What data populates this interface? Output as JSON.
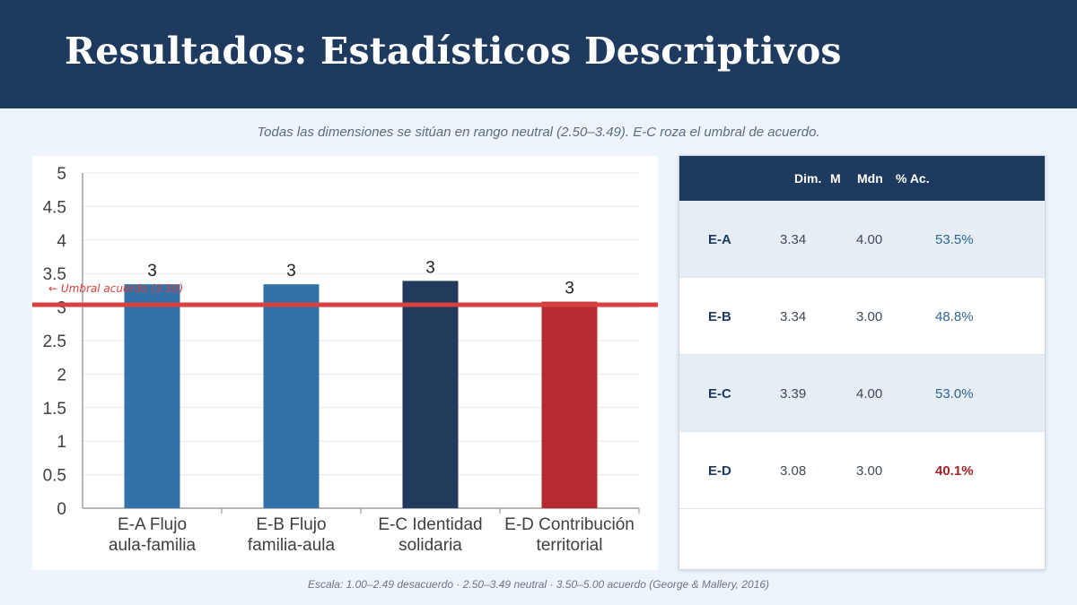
{
  "header": {
    "title": "Resultados: Estadísticos Descriptivos"
  },
  "subtitle": "Todas las dimensiones se sitúan en rango neutral (2.50–3.49). E-C roza el umbral de acuerdo.",
  "chart_data": {
    "type": "bar",
    "categories": [
      [
        "E-A Flujo",
        "aula-familia"
      ],
      [
        "E-B Flujo",
        "familia-aula"
      ],
      [
        "E-C Identidad",
        "solidaria"
      ],
      [
        "E-D Contribución",
        "territorial"
      ]
    ],
    "values": [
      3.34,
      3.34,
      3.39,
      3.08
    ],
    "data_labels": [
      "3",
      "3",
      "3",
      "3"
    ],
    "bar_colors": [
      "#3272a8",
      "#3272a8",
      "#223a5c",
      "#b52b2f"
    ],
    "ylim": [
      0,
      5
    ],
    "yticks": [
      "0",
      "0.5",
      "1",
      "1.5",
      "2",
      "2.5",
      "3",
      "3.5",
      "4",
      "4.5",
      "5"
    ],
    "grid": true,
    "threshold": {
      "label": "← Umbral acuerdo (3.50)",
      "color": "#d94040"
    }
  },
  "table": {
    "headers": [
      "Dim.",
      "M",
      "Mdn",
      "% Ac."
    ],
    "rows": [
      {
        "dim": "E-A",
        "m": "3.34",
        "mdn": "4.00",
        "ac": "53.5%",
        "ac_color": "#2f6690",
        "ac_bold": false
      },
      {
        "dim": "E-B",
        "m": "3.34",
        "mdn": "3.00",
        "ac": "48.8%",
        "ac_color": "#2f6690",
        "ac_bold": false
      },
      {
        "dim": "E-C",
        "m": "3.39",
        "mdn": "4.00",
        "ac": "53.0%",
        "ac_color": "#2f6690",
        "ac_bold": false
      },
      {
        "dim": "E-D",
        "m": "3.08",
        "mdn": "3.00",
        "ac": "40.1%",
        "ac_color": "#a3232a",
        "ac_bold": true
      }
    ]
  },
  "footnote": "Escala: 1.00–2.49 desacuerdo · 2.50–3.49 neutral · 3.50–5.00 acuerdo  (George & Mallery, 2016)"
}
